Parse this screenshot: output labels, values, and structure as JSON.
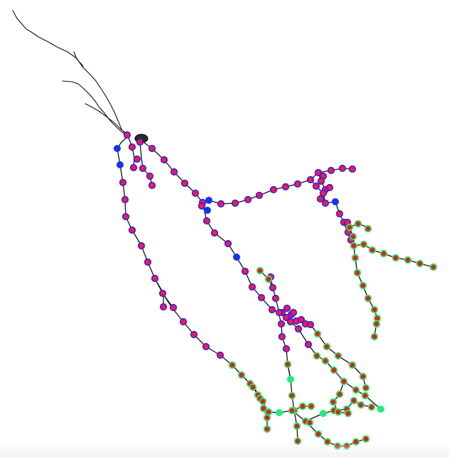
{
  "colors": {
    "background": "#ffffff",
    "branch_line": "#111111",
    "apical_node_fill": "#ff1a3c",
    "apical_node_ring": "#2a1cff",
    "apical_branch_point": "#1133ff",
    "basal_node_fill": "#e0201c",
    "basal_node_ring": "#2ee86a",
    "basal_branch_point": "#19f07a"
  },
  "view": {
    "kind": "neuron-morphology-tracing"
  }
}
